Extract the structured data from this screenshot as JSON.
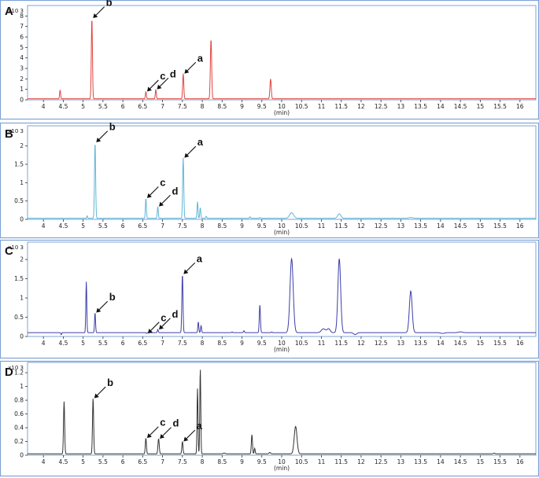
{
  "chart_data": [
    {
      "panel": "A",
      "type": "line",
      "color": "#e0453f",
      "scale": "x10 3",
      "xlabel": "(min)",
      "xlim": [
        3.6,
        16.4
      ],
      "ylim": [
        0,
        9
      ],
      "yticks": [
        0,
        1,
        2,
        3,
        4,
        5,
        6,
        7,
        8
      ],
      "xticks": [
        "4",
        "4.5",
        "5",
        "5.5",
        "6",
        "6.5",
        "7",
        "7.5",
        "8",
        "8.5",
        "9",
        "9.5",
        "10",
        "10.5",
        "11",
        "11.5",
        "12",
        "12.5",
        "13",
        "13.5",
        "14",
        "14.5",
        "15",
        "15.5",
        "16"
      ],
      "baseline": 0.1,
      "peaks": [
        {
          "x": 4.42,
          "y": 0.95,
          "w": 0.012
        },
        {
          "x": 5.22,
          "y": 7.8,
          "w": 0.014
        },
        {
          "x": 6.58,
          "y": 0.8,
          "w": 0.012
        },
        {
          "x": 6.83,
          "y": 1.0,
          "w": 0.012
        },
        {
          "x": 7.52,
          "y": 2.5,
          "w": 0.014
        },
        {
          "x": 8.22,
          "y": 5.8,
          "w": 0.016
        },
        {
          "x": 9.72,
          "y": 2.0,
          "w": 0.016
        }
      ],
      "annotations": [
        {
          "label": "b",
          "x": 5.22,
          "y": 7.8
        },
        {
          "label": "c",
          "x": 6.58,
          "y": 0.8
        },
        {
          "label": "d",
          "x": 6.83,
          "y": 1.0
        },
        {
          "label": "a",
          "x": 7.52,
          "y": 2.5
        }
      ]
    },
    {
      "panel": "B",
      "type": "line",
      "color": "#5fb6d8",
      "scale": "x10 3",
      "xlabel": "(min)",
      "xlim": [
        3.6,
        16.4
      ],
      "ylim": [
        0,
        2.55
      ],
      "yticks": [
        0,
        0.5,
        1,
        1.5,
        2
      ],
      "xticks": [
        "4",
        "4.5",
        "5",
        "5.5",
        "6",
        "6.5",
        "7",
        "7.5",
        "8",
        "8.5",
        "9",
        "9.5",
        "10",
        "10.5",
        "11",
        "11.5",
        "12",
        "12.5",
        "13",
        "13.5",
        "14",
        "14.5",
        "15",
        "15.5",
        "16"
      ],
      "baseline": 0.03,
      "peaks": [
        {
          "x": 5.1,
          "y": 0.1,
          "w": 0.01
        },
        {
          "x": 5.3,
          "y": 2.1,
          "w": 0.014
        },
        {
          "x": 6.58,
          "y": 0.58,
          "w": 0.012
        },
        {
          "x": 6.88,
          "y": 0.35,
          "w": 0.012
        },
        {
          "x": 7.52,
          "y": 1.68,
          "w": 0.014
        },
        {
          "x": 7.88,
          "y": 0.48,
          "w": 0.012
        },
        {
          "x": 7.95,
          "y": 0.32,
          "w": 0.012
        },
        {
          "x": 8.1,
          "y": 0.08,
          "w": 0.012
        },
        {
          "x": 9.2,
          "y": 0.07,
          "w": 0.012
        },
        {
          "x": 9.45,
          "y": 0.05,
          "w": 0.012
        },
        {
          "x": 10.25,
          "y": 0.18,
          "w": 0.05
        },
        {
          "x": 11.45,
          "y": 0.15,
          "w": 0.04
        },
        {
          "x": 13.25,
          "y": 0.05,
          "w": 0.05
        }
      ],
      "annotations": [
        {
          "label": "b",
          "x": 5.3,
          "y": 2.1
        },
        {
          "label": "c",
          "x": 6.58,
          "y": 0.58
        },
        {
          "label": "d",
          "x": 6.88,
          "y": 0.35
        },
        {
          "label": "a",
          "x": 7.52,
          "y": 1.68
        }
      ]
    },
    {
      "panel": "C",
      "type": "line",
      "color": "#3c3fa8",
      "scale": "x10 3",
      "xlabel": "(min)",
      "xlim": [
        3.6,
        16.4
      ],
      "ylim": [
        0,
        2.45
      ],
      "yticks": [
        0,
        0.5,
        1,
        1.5,
        2
      ],
      "xticks": [
        "4",
        "4.5",
        "5",
        "5.5",
        "6",
        "6.5",
        "7",
        "7.5",
        "8",
        "8.5",
        "9",
        "9.5",
        "10",
        "10.5",
        "11",
        "11.5",
        "12",
        "12.5",
        "13",
        "13.5",
        "14",
        "14.5",
        "15",
        "15.5",
        "16"
      ],
      "baseline": 0.1,
      "peaks": [
        {
          "x": 4.45,
          "y": 0.05,
          "w": 0.01
        },
        {
          "x": 5.08,
          "y": 1.42,
          "w": 0.012
        },
        {
          "x": 5.3,
          "y": 0.62,
          "w": 0.012
        },
        {
          "x": 6.6,
          "y": 0.08,
          "w": 0.01
        },
        {
          "x": 6.88,
          "y": 0.18,
          "w": 0.012
        },
        {
          "x": 7.5,
          "y": 1.62,
          "w": 0.014
        },
        {
          "x": 7.9,
          "y": 0.38,
          "w": 0.012
        },
        {
          "x": 7.97,
          "y": 0.28,
          "w": 0.012
        },
        {
          "x": 8.75,
          "y": 0.12,
          "w": 0.01
        },
        {
          "x": 9.05,
          "y": 0.15,
          "w": 0.012
        },
        {
          "x": 9.45,
          "y": 0.82,
          "w": 0.014
        },
        {
          "x": 9.75,
          "y": 0.12,
          "w": 0.01
        },
        {
          "x": 10.25,
          "y": 2.02,
          "w": 0.04
        },
        {
          "x": 11.05,
          "y": 0.2,
          "w": 0.05
        },
        {
          "x": 11.18,
          "y": 0.2,
          "w": 0.04
        },
        {
          "x": 11.45,
          "y": 2.02,
          "w": 0.035
        },
        {
          "x": 11.85,
          "y": 0.05,
          "w": 0.04
        },
        {
          "x": 13.25,
          "y": 1.18,
          "w": 0.035
        },
        {
          "x": 14.05,
          "y": 0.08,
          "w": 0.05
        },
        {
          "x": 14.5,
          "y": 0.12,
          "w": 0.05
        }
      ],
      "annotations": [
        {
          "label": "b",
          "x": 5.3,
          "y": 0.62
        },
        {
          "label": "c",
          "x": 6.6,
          "y": 0.08
        },
        {
          "label": "d",
          "x": 6.88,
          "y": 0.18
        },
        {
          "label": "a",
          "x": 7.5,
          "y": 1.62
        }
      ]
    },
    {
      "panel": "D",
      "type": "line",
      "color": "#333333",
      "scale": "x10 3",
      "xlabel": "(min)",
      "xlim": [
        3.6,
        16.4
      ],
      "ylim": [
        0,
        1.35
      ],
      "yticks": [
        0,
        0.2,
        0.4,
        0.6,
        0.8,
        1,
        1.2
      ],
      "xticks": [
        "4",
        "4.5",
        "5",
        "5.5",
        "6",
        "6.5",
        "7",
        "7.5",
        "8",
        "8.5",
        "9",
        "9.5",
        "10",
        "10.5",
        "11",
        "11.5",
        "12",
        "12.5",
        "13",
        "13.5",
        "14",
        "14.5",
        "15",
        "15.5",
        "16"
      ],
      "baseline": 0.02,
      "peaks": [
        {
          "x": 4.52,
          "y": 0.78,
          "w": 0.014
        },
        {
          "x": 5.25,
          "y": 0.83,
          "w": 0.014
        },
        {
          "x": 5.78,
          "y": 0.02,
          "w": 0.01
        },
        {
          "x": 6.58,
          "y": 0.25,
          "w": 0.014
        },
        {
          "x": 6.9,
          "y": 0.24,
          "w": 0.016
        },
        {
          "x": 7.5,
          "y": 0.2,
          "w": 0.014
        },
        {
          "x": 7.88,
          "y": 0.97,
          "w": 0.012
        },
        {
          "x": 7.95,
          "y": 1.26,
          "w": 0.012
        },
        {
          "x": 8.55,
          "y": 0.03,
          "w": 0.03
        },
        {
          "x": 9.25,
          "y": 0.3,
          "w": 0.014
        },
        {
          "x": 9.32,
          "y": 0.1,
          "w": 0.012
        },
        {
          "x": 9.7,
          "y": 0.04,
          "w": 0.02
        },
        {
          "x": 10.35,
          "y": 0.42,
          "w": 0.035
        },
        {
          "x": 11.0,
          "y": 0.02,
          "w": 0.04
        },
        {
          "x": 15.35,
          "y": 0.03,
          "w": 0.02
        }
      ],
      "annotations": [
        {
          "label": "b",
          "x": 5.25,
          "y": 0.83
        },
        {
          "label": "c",
          "x": 6.58,
          "y": 0.25
        },
        {
          "label": "d",
          "x": 6.9,
          "y": 0.24
        },
        {
          "label": "a",
          "x": 7.5,
          "y": 0.2
        }
      ]
    }
  ]
}
